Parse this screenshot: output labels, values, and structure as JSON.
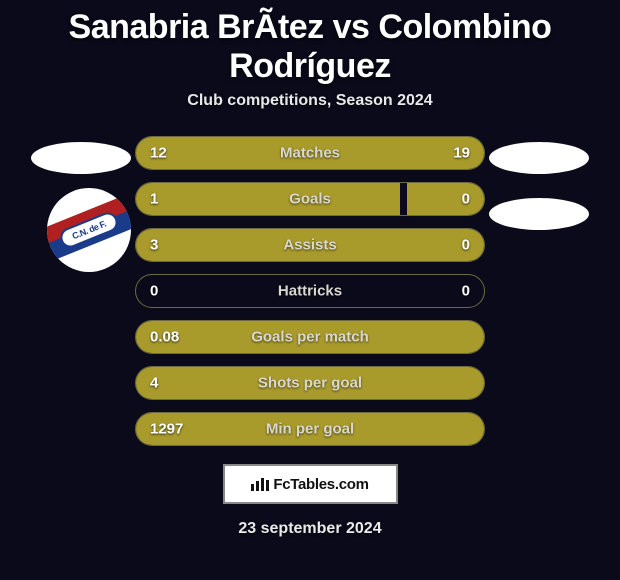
{
  "title_parts": {
    "player1": "Sanabria BrÃ­tez",
    "vs": " vs ",
    "player2": "Colombino Rodríguez"
  },
  "subtitle": "Club competitions, Season 2024",
  "colors": {
    "bar_left": "#a99a2c",
    "bar_right": "#a99a2c",
    "row_border": "#6b6b40",
    "background": "#0a0a1a"
  },
  "stats": [
    {
      "label": "Matches",
      "p1": "12",
      "p2": "19",
      "left_w": 39,
      "right_w": 61
    },
    {
      "label": "Goals",
      "p1": "1",
      "p2": "0",
      "left_w": 76,
      "right_w": 22
    },
    {
      "label": "Assists",
      "p1": "3",
      "p2": "0",
      "left_w": 78,
      "right_w": 22
    },
    {
      "label": "Hattricks",
      "p1": "0",
      "p2": "0",
      "left_w": 0,
      "right_w": 0
    },
    {
      "label": "Goals per match",
      "p1": "0.08",
      "p2": "",
      "left_w": 100,
      "right_w": 0
    },
    {
      "label": "Shots per goal",
      "p1": "4",
      "p2": "",
      "left_w": 100,
      "right_w": 0
    },
    {
      "label": "Min per goal",
      "p1": "1297",
      "p2": "",
      "left_w": 100,
      "right_w": 0
    }
  ],
  "club_badge_text": "C.N. de F.",
  "brand": "FcTables.com",
  "date": "23 september 2024"
}
